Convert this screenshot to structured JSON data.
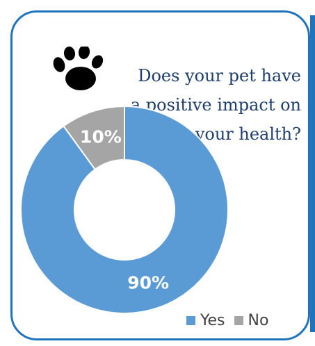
{
  "title_lines": [
    "Does your pet have",
    "a positive  impact on",
    "your health?"
  ],
  "icon": "paw-icon",
  "colors": {
    "border": "#1f74bd",
    "yes": "#5b9bd5",
    "no": "#a5a5a5",
    "title": "#1f3e6e"
  },
  "chart_data": {
    "type": "pie",
    "variant": "donut",
    "categories": [
      "Yes",
      "No"
    ],
    "values": [
      90,
      10
    ],
    "data_labels": [
      "90%",
      "10%"
    ],
    "legend": {
      "position": "bottom-right",
      "entries": [
        "Yes",
        "No"
      ]
    },
    "title": "Does your pet have a positive  impact on your health?"
  }
}
